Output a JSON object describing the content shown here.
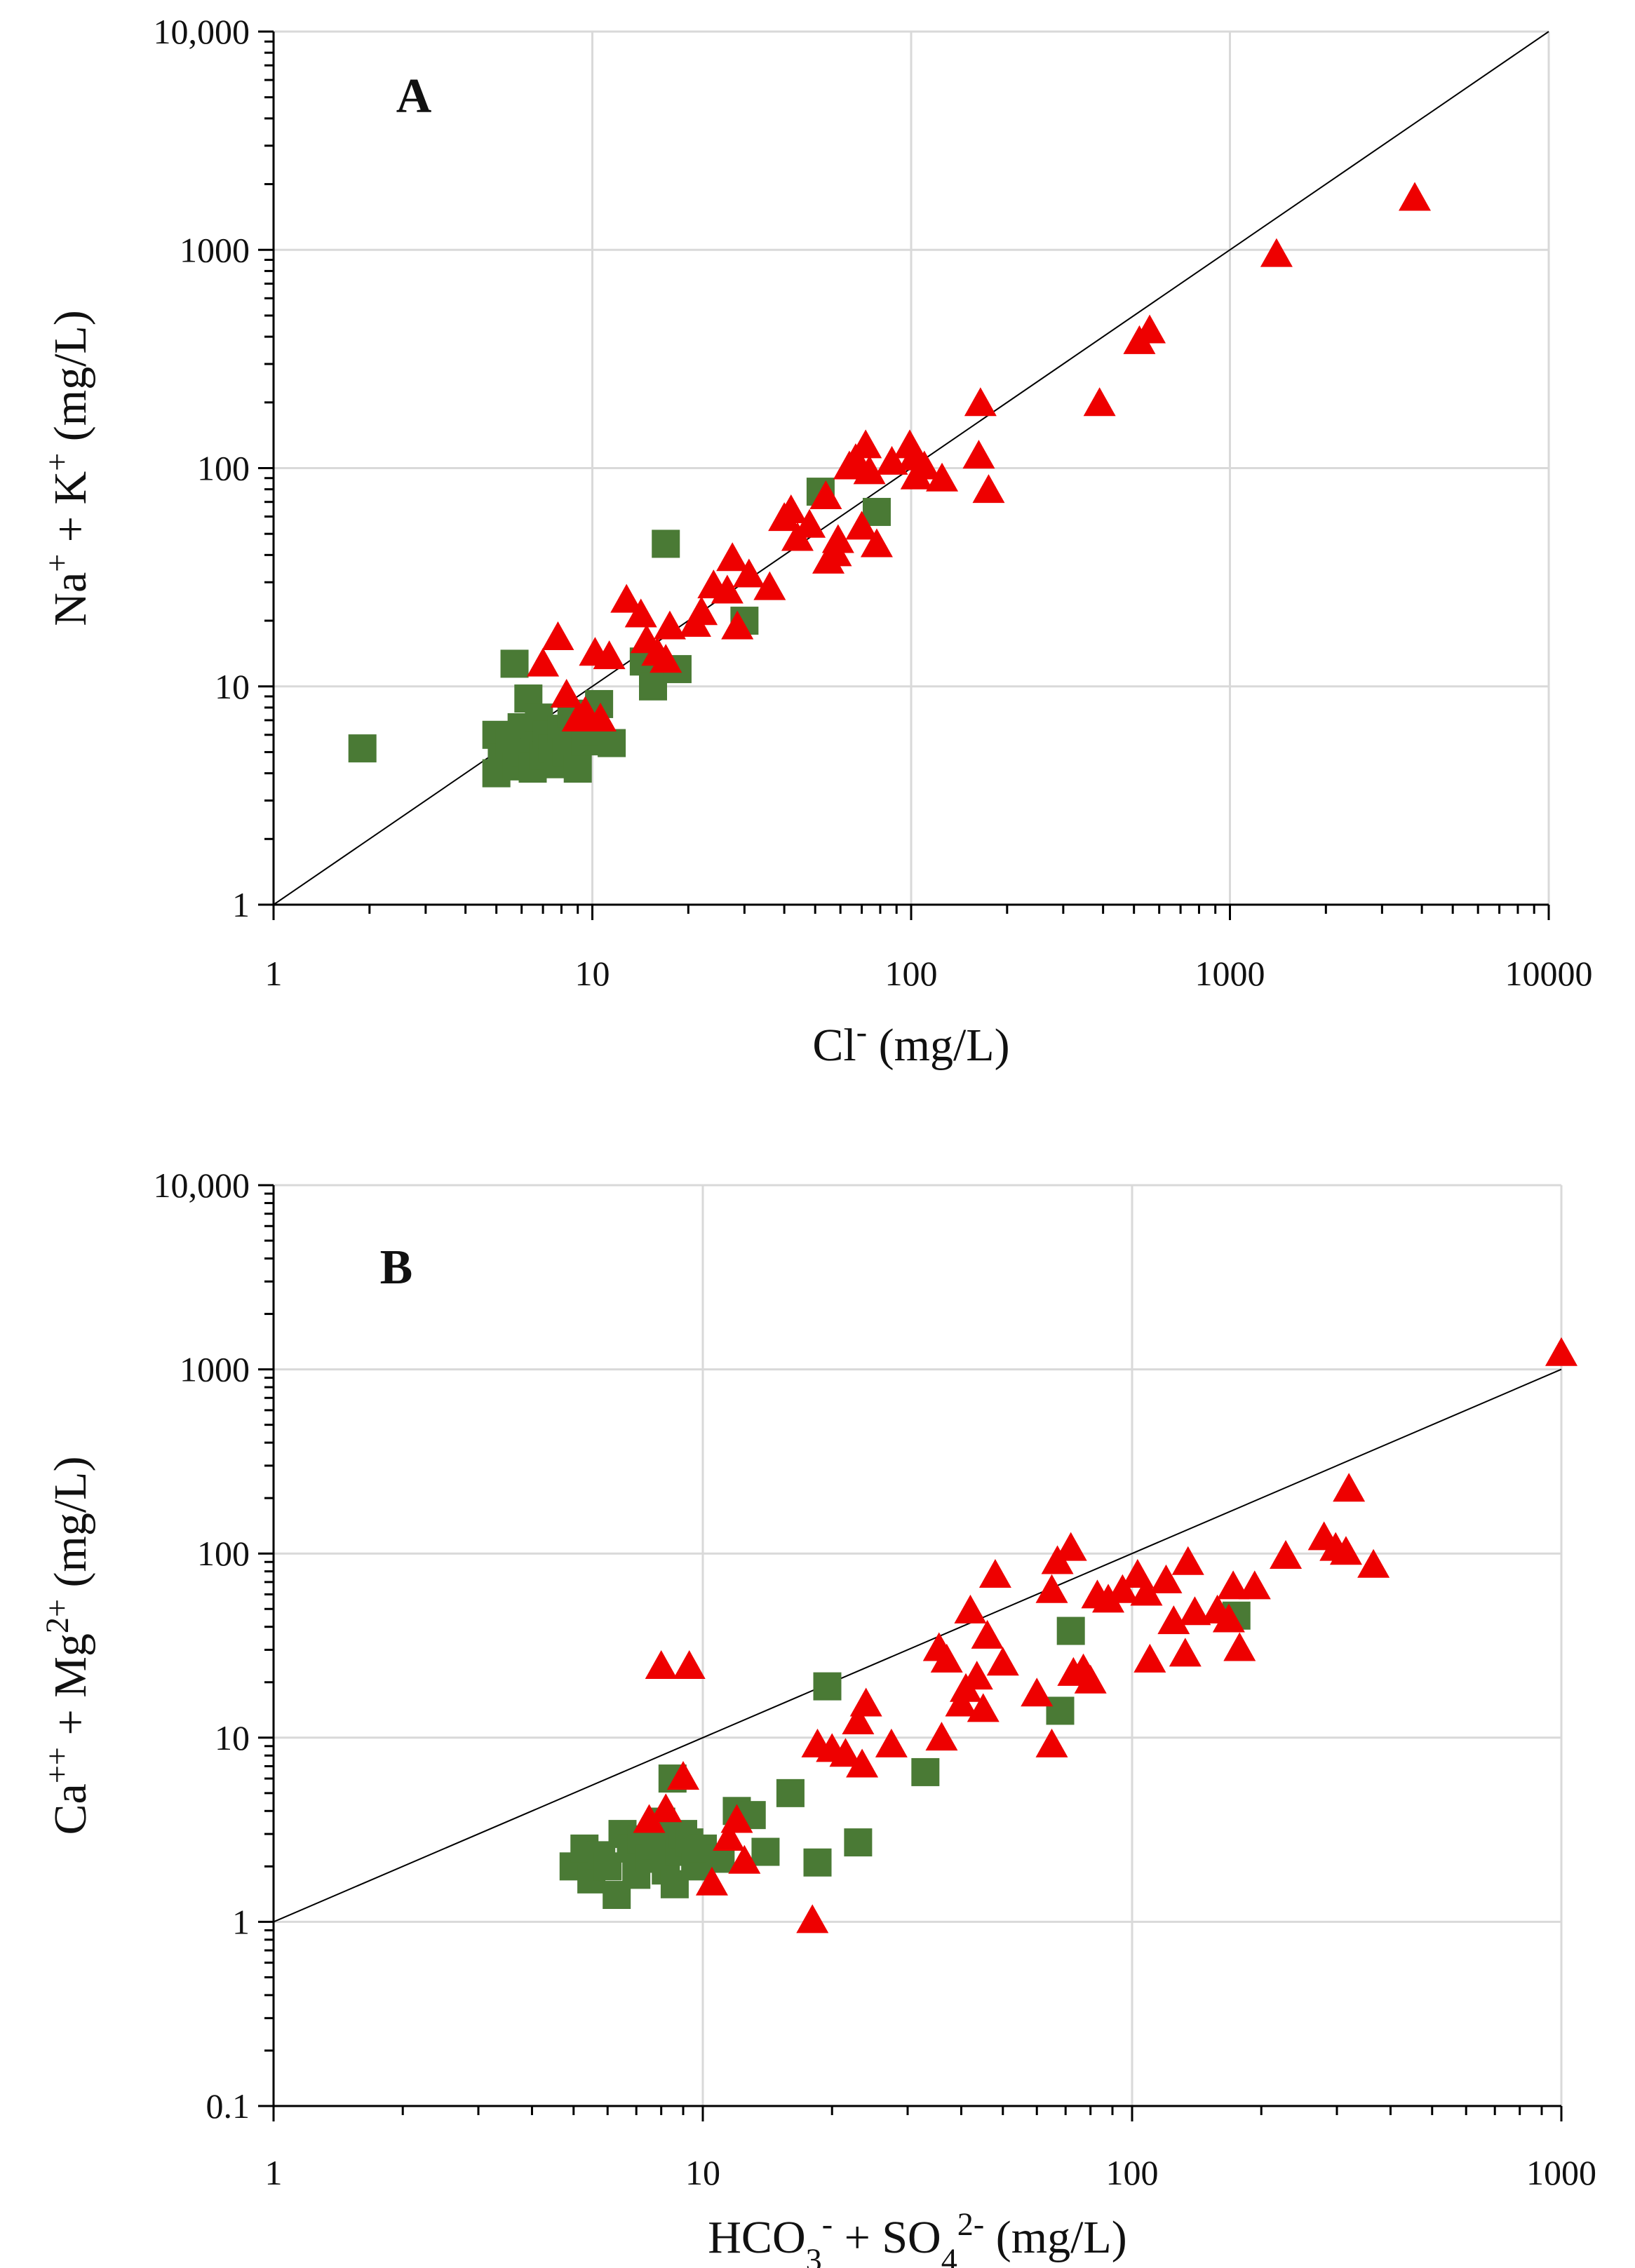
{
  "colors": {
    "green_square": "#4a7a35",
    "red_triangle": "#ee0000",
    "grid": "#d9d9d9",
    "axis": "#000000"
  },
  "chart_data": [
    {
      "type": "scatter",
      "panel_label": "A",
      "xlabel": "Cl- (mg/L)",
      "xlabel_parts": {
        "base": "Cl",
        "sup": "-",
        "tail": " (mg/L)"
      },
      "ylabel": "Na+ + K+ (mg/L)",
      "ylabel_parts": [
        {
          "t": "Na"
        },
        {
          "t": "+",
          "sup": true
        },
        {
          "t": " + K"
        },
        {
          "t": "+",
          "sup": true
        },
        {
          "t": " (mg/L)"
        }
      ],
      "xscale": "log",
      "yscale": "log",
      "xlim": [
        1,
        10000
      ],
      "ylim": [
        1,
        10000
      ],
      "xticks": [
        1,
        10,
        100,
        1000,
        10000
      ],
      "xtick_labels": [
        "1",
        "10",
        "100",
        "1000",
        "10000"
      ],
      "yticks": [
        1,
        10,
        100,
        1000,
        10000
      ],
      "ytick_labels": [
        "1",
        "10",
        "100",
        "1000",
        "10,000"
      ],
      "grid": true,
      "reference_line": "1:1",
      "series": [
        {
          "name": "green squares",
          "marker": "square",
          "color": "#4a7a35",
          "points": [
            [
              1.9,
              5.2
            ],
            [
              5.7,
              12.7
            ],
            [
              5.0,
              4.0
            ],
            [
              5.0,
              6.0
            ],
            [
              5.2,
              4.7
            ],
            [
              5.5,
              5.5
            ],
            [
              5.8,
              4.3
            ],
            [
              6.0,
              6.5
            ],
            [
              6.2,
              5.0
            ],
            [
              6.3,
              8.8
            ],
            [
              6.5,
              4.2
            ],
            [
              6.6,
              5.8
            ],
            [
              6.8,
              7.2
            ],
            [
              7.0,
              4.8
            ],
            [
              7.2,
              6.0
            ],
            [
              7.5,
              5.2
            ],
            [
              7.8,
              4.4
            ],
            [
              8.0,
              6.4
            ],
            [
              8.3,
              5.0
            ],
            [
              8.6,
              7.5
            ],
            [
              9.0,
              4.2
            ],
            [
              9.5,
              5.6
            ],
            [
              10.0,
              6.2
            ],
            [
              10.5,
              8.3
            ],
            [
              11.5,
              5.5
            ],
            [
              14.5,
              13.0
            ],
            [
              15.5,
              10.0
            ],
            [
              17.0,
              45.0
            ],
            [
              18.5,
              12.0
            ],
            [
              30.0,
              20.0
            ],
            [
              52.0,
              78.0
            ],
            [
              78.0,
              63.0
            ]
          ]
        },
        {
          "name": "red triangles",
          "marker": "triangle",
          "color": "#ee0000",
          "points": [
            [
              7.0,
              12.5
            ],
            [
              7.8,
              16.5
            ],
            [
              8.3,
              9.0
            ],
            [
              9.0,
              7.0
            ],
            [
              9.5,
              7.5
            ],
            [
              10.2,
              14.0
            ],
            [
              10.6,
              7.0
            ],
            [
              11.3,
              13.5
            ],
            [
              12.8,
              24.5
            ],
            [
              14.2,
              21.0
            ],
            [
              14.8,
              16.0
            ],
            [
              16.0,
              14.0
            ],
            [
              17.5,
              18.5
            ],
            [
              17.0,
              13.0
            ],
            [
              21.0,
              19.0
            ],
            [
              22.0,
              21.5
            ],
            [
              24.0,
              28.5
            ],
            [
              26.5,
              27.0
            ],
            [
              27.5,
              38.0
            ],
            [
              28.5,
              18.5
            ],
            [
              31.0,
              32.0
            ],
            [
              36.0,
              28.0
            ],
            [
              42.0,
              63.0
            ],
            [
              40.0,
              58.0
            ],
            [
              44.0,
              47.0
            ],
            [
              48.0,
              54.0
            ],
            [
              54.0,
              73.0
            ],
            [
              55.0,
              37.0
            ],
            [
              58.0,
              40.0
            ],
            [
              59.0,
              46.0
            ],
            [
              64.0,
              100.0
            ],
            [
              67.0,
              108.0
            ],
            [
              70.0,
              53.0
            ],
            [
              72.0,
              125.0
            ],
            [
              74.0,
              95.0
            ],
            [
              78.0,
              44.0
            ],
            [
              87.0,
              105.0
            ],
            [
              99.0,
              125.0
            ],
            [
              102.0,
              110.0
            ],
            [
              104.0,
              90.0
            ],
            [
              110.0,
              100.0
            ],
            [
              125.0,
              88.0
            ],
            [
              165.0,
              195.0
            ],
            [
              163.0,
              112.0
            ],
            [
              175.0,
              78.0
            ],
            [
              390.0,
              195.0
            ],
            [
              520.0,
              375.0
            ],
            [
              560.0,
              420.0
            ],
            [
              1400.0,
              940.0
            ],
            [
              3800.0,
              1700.0
            ]
          ]
        }
      ]
    },
    {
      "type": "scatter",
      "panel_label": "B",
      "xlabel": "HCO3- + SO42- (mg/L)",
      "xlabel_parts": [
        {
          "t": "HCO"
        },
        {
          "t": "3",
          "sub": true
        },
        {
          "t": "-",
          "sup": true
        },
        {
          "t": " + SO"
        },
        {
          "t": "4",
          "sub": true
        },
        {
          "t": "2-",
          "sup": true
        },
        {
          "t": " (mg/L)"
        }
      ],
      "ylabel": "Ca++ + Mg2+ (mg/L)",
      "ylabel_parts": [
        {
          "t": "Ca"
        },
        {
          "t": "++",
          "sup": true
        },
        {
          "t": " + Mg"
        },
        {
          "t": "2+",
          "sup": true
        },
        {
          "t": " (mg/L)"
        }
      ],
      "xscale": "log",
      "yscale": "log",
      "xlim": [
        1,
        1000
      ],
      "ylim": [
        0.1,
        10000
      ],
      "xticks": [
        1,
        10,
        100,
        1000
      ],
      "xtick_labels": [
        "1",
        "10",
        "100",
        "1000"
      ],
      "yticks": [
        0.1,
        1,
        10,
        100,
        1000,
        10000
      ],
      "ytick_labels": [
        "0.1",
        "1",
        "10",
        "100",
        "1000",
        "10,000"
      ],
      "grid": true,
      "reference_line": "1:1",
      "series": [
        {
          "name": "green squares",
          "marker": "square",
          "color": "#4a7a35",
          "points": [
            [
              5.0,
              2.0
            ],
            [
              5.3,
              2.5
            ],
            [
              5.5,
              1.7
            ],
            [
              5.8,
              2.3
            ],
            [
              6.0,
              2.0
            ],
            [
              6.3,
              1.4
            ],
            [
              6.5,
              3.0
            ],
            [
              6.8,
              2.5
            ],
            [
              7.0,
              1.8
            ],
            [
              7.2,
              2.8
            ],
            [
              7.5,
              2.2
            ],
            [
              7.8,
              2.6
            ],
            [
              8.0,
              3.5
            ],
            [
              8.2,
              1.9
            ],
            [
              8.5,
              6.0
            ],
            [
              8.6,
              1.6
            ],
            [
              8.8,
              2.4
            ],
            [
              9.0,
              3.0
            ],
            [
              9.3,
              2.7
            ],
            [
              9.6,
              2.0
            ],
            [
              10.0,
              2.5
            ],
            [
              11.0,
              2.2
            ],
            [
              12.0,
              4.0
            ],
            [
              13.0,
              3.8
            ],
            [
              14.0,
              2.4
            ],
            [
              16.0,
              5.0
            ],
            [
              18.5,
              2.1
            ],
            [
              19.5,
              19.0
            ],
            [
              23.0,
              2.7
            ],
            [
              33.0,
              6.5
            ],
            [
              68.0,
              14.0
            ],
            [
              72.0,
              38.0
            ],
            [
              175.0,
              46.0
            ]
          ]
        },
        {
          "name": "red triangles",
          "marker": "triangle",
          "color": "#ee0000",
          "points": [
            [
              7.5,
              3.5
            ],
            [
              8.0,
              24.0
            ],
            [
              8.2,
              4.0
            ],
            [
              9.0,
              6.0
            ],
            [
              9.3,
              24.0
            ],
            [
              10.5,
              1.6
            ],
            [
              11.5,
              2.8
            ],
            [
              12.0,
              3.5
            ],
            [
              12.5,
              2.1
            ],
            [
              18.0,
              1.0
            ],
            [
              18.5,
              9.0
            ],
            [
              20.0,
              8.5
            ],
            [
              21.5,
              8.0
            ],
            [
              23.0,
              12.0
            ],
            [
              23.5,
              7.0
            ],
            [
              24.0,
              15.0
            ],
            [
              27.5,
              9.0
            ],
            [
              35.5,
              30.0
            ],
            [
              36.0,
              9.8
            ],
            [
              37.0,
              26.0
            ],
            [
              40.0,
              15.0
            ],
            [
              41.0,
              18.0
            ],
            [
              42.0,
              48.0
            ],
            [
              43.5,
              21.0
            ],
            [
              45.0,
              14.0
            ],
            [
              46.0,
              35.0
            ],
            [
              48.0,
              75.0
            ],
            [
              50.0,
              25.0
            ],
            [
              60.0,
              17.0
            ],
            [
              65.0,
              62.0
            ],
            [
              65.0,
              9.0
            ],
            [
              67.0,
              89.0
            ],
            [
              72.0,
              105.0
            ],
            [
              73.0,
              22.0
            ],
            [
              77.0,
              23.0
            ],
            [
              80.0,
              20.0
            ],
            [
              83.0,
              58.0
            ],
            [
              88.0,
              55.0
            ],
            [
              95.0,
              62.0
            ],
            [
              103.0,
              75.0
            ],
            [
              108.0,
              60.0
            ],
            [
              110.0,
              26.0
            ],
            [
              120.0,
              70.0
            ],
            [
              125.0,
              42.0
            ],
            [
              133.0,
              28.0
            ],
            [
              135.0,
              88.0
            ],
            [
              140.0,
              47.0
            ],
            [
              158.0,
              48.0
            ],
            [
              168.0,
              43.0
            ],
            [
              172.0,
              65.0
            ],
            [
              178.0,
              30.0
            ],
            [
              193.0,
              65.0
            ],
            [
              228.0,
              95.0
            ],
            [
              280.0,
              120.0
            ],
            [
              298.0,
              105.0
            ],
            [
              315.0,
              100.0
            ],
            [
              320.0,
              220.0
            ],
            [
              365.0,
              85.0
            ],
            [
              1000.0,
              1200.0
            ]
          ]
        }
      ]
    }
  ]
}
